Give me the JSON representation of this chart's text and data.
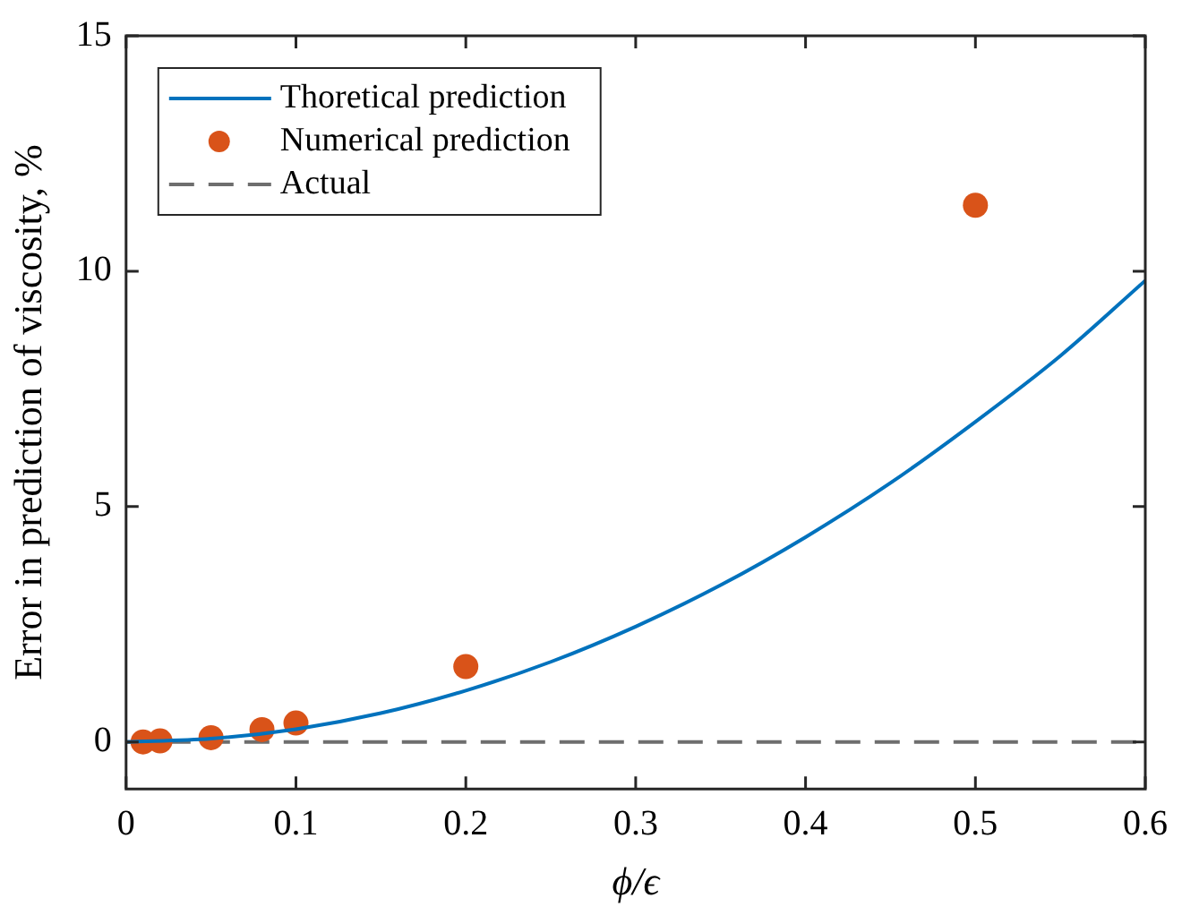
{
  "chart_data": {
    "type": "line",
    "xlabel": "ϕ/ϵ",
    "ylabel": "Error in prediction of viscosity, %",
    "xlim": [
      0,
      0.6
    ],
    "xticks": [
      0,
      0.1,
      0.2,
      0.3,
      0.4,
      0.5,
      0.6
    ],
    "ylim": [
      -1,
      15
    ],
    "yticks": [
      0,
      5,
      10,
      15
    ],
    "legend": "top left",
    "series": [
      {
        "name": "Thoretical prediction",
        "color": "#0072bd",
        "line_style": "solid",
        "marker": "none",
        "x": [
          0,
          0.05,
          0.1,
          0.15,
          0.2,
          0.25,
          0.3,
          0.35,
          0.4,
          0.45,
          0.5,
          0.55,
          0.6
        ],
        "values": [
          0,
          0.07,
          0.27,
          0.61,
          1.09,
          1.7,
          2.45,
          3.33,
          4.35,
          5.5,
          6.8,
          8.2,
          9.8
        ]
      },
      {
        "name": "Numerical prediction",
        "type": "scatter",
        "color": "#d95319",
        "marker": "circle",
        "x": [
          0.01,
          0.02,
          0.05,
          0.08,
          0.1,
          0.2,
          0.5
        ],
        "values": [
          0,
          0.02,
          0.09,
          0.26,
          0.4,
          1.6,
          11.4
        ]
      },
      {
        "name": "Actual",
        "color": "#6e6e6e",
        "line_style": "dashed",
        "marker": "none",
        "x": [
          0,
          0.6
        ],
        "values": [
          0,
          0
        ]
      }
    ]
  }
}
